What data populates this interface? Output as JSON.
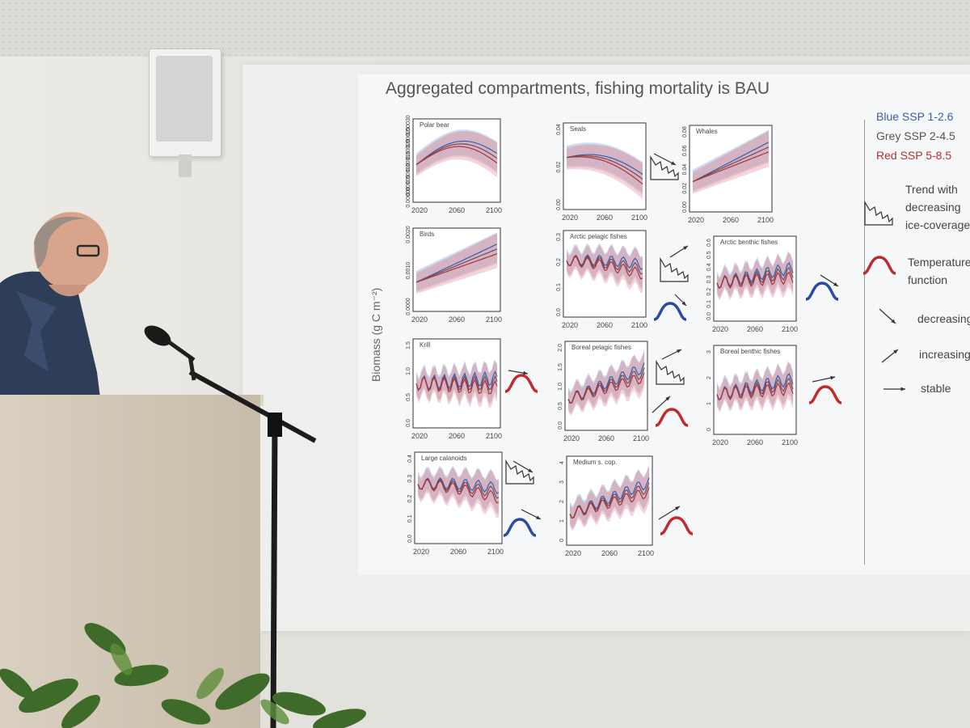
{
  "slide": {
    "title": "Aggregated compartments, fishing mortality is BAU",
    "y_axis_label": "Biomass (g C m⁻²)",
    "legend": [
      {
        "text": "Blue SSP 1-2.6",
        "color": "#3b5ea8"
      },
      {
        "text": "Grey SSP 2-4.5",
        "color": "#555555"
      },
      {
        "text": "Red SSP 5-8.5",
        "color": "#b5302f"
      }
    ],
    "key": {
      "trend_line1": "Trend with",
      "trend_line2": "decreasing",
      "trend_line3": "ice-coverage",
      "temp_line1": "Temperature",
      "temp_line2": "function",
      "decreasing": "decreasing",
      "increasing": "increasing",
      "stable": "stable"
    }
  },
  "chart_data": [
    {
      "type": "area",
      "title": "Polar bear",
      "x": [
        2020,
        2060,
        2100
      ],
      "yticks": [
        "0.00000",
        "0.00005",
        "0.00010",
        "0.00015",
        "0.00020",
        "0.00025",
        "0.00030"
      ],
      "xticks": [
        "2020",
        "2060",
        "2100"
      ]
    },
    {
      "type": "area",
      "title": "Seals",
      "yticks": [
        "0.00",
        "0.02",
        "0.04"
      ],
      "xticks": [
        "2020",
        "2060",
        "2100"
      ]
    },
    {
      "type": "area",
      "title": "Whales",
      "yticks": [
        "0.00",
        "0.02",
        "0.04",
        "0.06",
        "0.08"
      ],
      "xticks": [
        "2020",
        "2060",
        "2100"
      ]
    },
    {
      "type": "area",
      "title": "Birds",
      "yticks": [
        "0.0000",
        "0.0010",
        "0.0020"
      ],
      "xticks": [
        "2020",
        "2060",
        "2100"
      ]
    },
    {
      "type": "area",
      "title": "Arctic pelagic fishes",
      "yticks": [
        "0.0",
        "0.1",
        "0.2",
        "0.3"
      ],
      "xticks": [
        "2020",
        "2060",
        "2100"
      ]
    },
    {
      "type": "area",
      "title": "Arctic benthic fishes",
      "yticks": [
        "0.0",
        "0.1",
        "0.2",
        "0.3",
        "0.4",
        "0.5",
        "0.6"
      ],
      "xticks": [
        "2020",
        "2060",
        "2100"
      ]
    },
    {
      "type": "area",
      "title": "Krill",
      "yticks": [
        "0.0",
        "0.5",
        "1.0",
        "1.5"
      ],
      "xticks": [
        "2020",
        "2060",
        "2100"
      ]
    },
    {
      "type": "area",
      "title": "Boreal pelagic fishes",
      "yticks": [
        "0.0",
        "0.5",
        "1.0",
        "1.5",
        "2.0"
      ],
      "xticks": [
        "2020",
        "2060",
        "2100"
      ]
    },
    {
      "type": "area",
      "title": "Boreal benthic fishes",
      "yticks": [
        "0",
        "1",
        "2",
        "3"
      ],
      "xticks": [
        "2020",
        "2060",
        "2100"
      ]
    },
    {
      "type": "area",
      "title": "Large calanoids",
      "yticks": [
        "0.0",
        "0.1",
        "0.2",
        "0.3",
        "0.4"
      ],
      "xticks": [
        "2020",
        "2060",
        "2100"
      ]
    },
    {
      "type": "area",
      "title": "Medium s. cop.",
      "yticks": [
        "0",
        "1",
        "2",
        "3",
        "4"
      ],
      "xticks": [
        "2020",
        "2060",
        "2100"
      ]
    }
  ]
}
